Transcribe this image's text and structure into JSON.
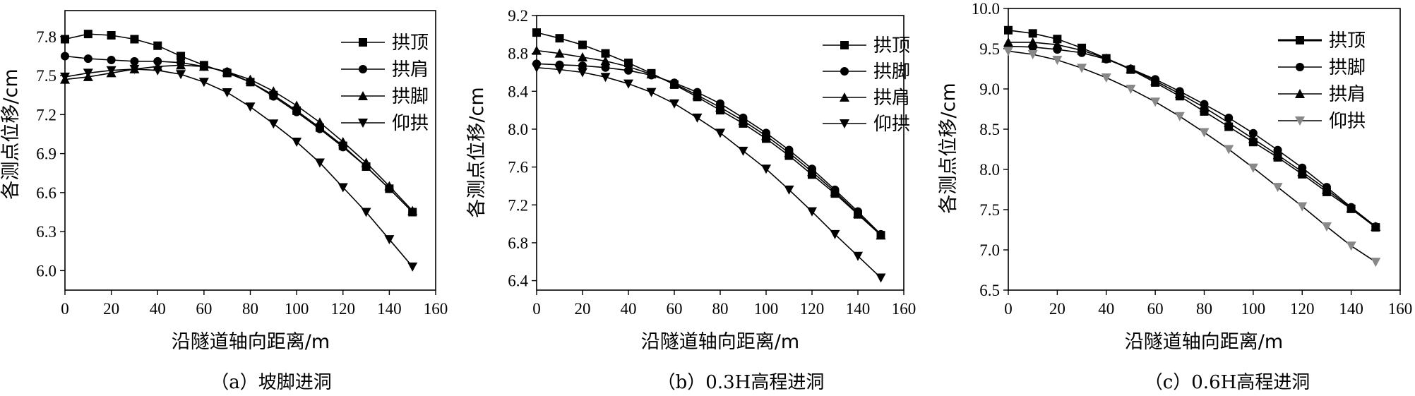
{
  "chart_data": [
    {
      "type": "line",
      "caption": "（a）坡脚进洞",
      "xlabel": "沿隧道轴向距离/m",
      "ylabel": "各测点位移/cm",
      "xlim": [
        0,
        160
      ],
      "ylim": [
        5.85,
        8.0
      ],
      "xticks": [
        "0",
        "20",
        "40",
        "60",
        "80",
        "100",
        "120",
        "140",
        "160"
      ],
      "yticks": [
        "6.0",
        "6.3",
        "6.6",
        "6.9",
        "7.2",
        "7.5",
        "7.8"
      ],
      "legend_position": "top-right",
      "x": [
        0,
        10,
        20,
        30,
        40,
        50,
        60,
        70,
        80,
        90,
        100,
        110,
        120,
        130,
        140,
        150
      ],
      "series": [
        {
          "name": "拱顶",
          "marker": "square",
          "color": "#000000",
          "values": [
            7.78,
            7.82,
            7.81,
            7.78,
            7.73,
            7.65,
            7.58,
            7.52,
            7.45,
            7.35,
            7.23,
            7.1,
            6.96,
            6.8,
            6.63,
            6.45
          ]
        },
        {
          "name": "拱肩",
          "marker": "circle",
          "color": "#000000",
          "values": [
            7.65,
            7.63,
            7.62,
            7.61,
            7.61,
            7.6,
            7.57,
            7.53,
            7.45,
            7.34,
            7.22,
            7.09,
            6.95,
            6.8,
            6.63,
            6.45
          ]
        },
        {
          "name": "拱脚",
          "marker": "triangle-up",
          "color": "#000000",
          "values": [
            7.47,
            7.49,
            7.52,
            7.55,
            7.57,
            7.58,
            7.57,
            7.53,
            7.47,
            7.38,
            7.27,
            7.14,
            6.99,
            6.83,
            6.65,
            6.46
          ]
        },
        {
          "name": "仰拱",
          "marker": "triangle-down",
          "color": "#000000",
          "values": [
            7.49,
            7.52,
            7.54,
            7.55,
            7.54,
            7.51,
            7.45,
            7.37,
            7.26,
            7.13,
            6.99,
            6.83,
            6.64,
            6.45,
            6.24,
            6.03
          ]
        }
      ]
    },
    {
      "type": "line",
      "caption": "（b）0.3H高程进洞",
      "xlabel": "沿隧道轴向距离/m",
      "ylabel": "各测点位移/cm",
      "xlim": [
        0,
        160
      ],
      "ylim": [
        6.3,
        9.2
      ],
      "xticks": [
        "0",
        "20",
        "40",
        "60",
        "80",
        "100",
        "120",
        "140",
        "160"
      ],
      "yticks": [
        "6.4",
        "6.8",
        "7.2",
        "7.6",
        "8.0",
        "8.4",
        "8.8",
        "9.2"
      ],
      "legend_position": "top-right",
      "x": [
        0,
        10,
        20,
        30,
        40,
        50,
        60,
        70,
        80,
        90,
        100,
        110,
        120,
        130,
        140,
        150
      ],
      "series": [
        {
          "name": "拱顶",
          "marker": "square",
          "color": "#000000",
          "values": [
            9.02,
            8.96,
            8.89,
            8.8,
            8.7,
            8.59,
            8.47,
            8.34,
            8.2,
            8.06,
            7.9,
            7.72,
            7.52,
            7.32,
            7.1,
            6.88
          ]
        },
        {
          "name": "拱脚",
          "marker": "circle",
          "color": "#000000",
          "values": [
            8.69,
            8.68,
            8.67,
            8.65,
            8.62,
            8.57,
            8.49,
            8.39,
            8.27,
            8.12,
            7.96,
            7.78,
            7.58,
            7.36,
            7.13,
            6.89
          ]
        },
        {
          "name": "拱肩",
          "marker": "triangle-up",
          "color": "#000000",
          "values": [
            8.83,
            8.8,
            8.76,
            8.72,
            8.66,
            8.58,
            8.48,
            8.36,
            8.23,
            8.09,
            7.93,
            7.75,
            7.55,
            7.34,
            7.11,
            6.88
          ]
        },
        {
          "name": "仰拱",
          "marker": "triangle-down",
          "color": "#000000",
          "values": [
            8.65,
            8.63,
            8.6,
            8.55,
            8.48,
            8.39,
            8.27,
            8.12,
            7.96,
            7.77,
            7.58,
            7.36,
            7.13,
            6.89,
            6.66,
            6.43
          ]
        }
      ]
    },
    {
      "type": "line",
      "caption": "（c）0.6H高程进洞",
      "xlabel": "沿隧道轴向距离/m",
      "ylabel": "各测点位移/cm",
      "xlim": [
        0,
        160
      ],
      "ylim": [
        6.5,
        10.0
      ],
      "xticks": [
        "0",
        "20",
        "40",
        "60",
        "80",
        "100",
        "120",
        "140",
        "160"
      ],
      "yticks": [
        "6.5",
        "7.0",
        "7.5",
        "8.0",
        "8.5",
        "9.0",
        "9.5",
        "10.0"
      ],
      "legend_position": "top-right",
      "x": [
        0,
        10,
        20,
        30,
        40,
        50,
        60,
        70,
        80,
        90,
        100,
        110,
        120,
        130,
        140,
        150
      ],
      "series": [
        {
          "name": "拱顶",
          "marker": "square",
          "color": "#000000",
          "values": [
            9.73,
            9.69,
            9.62,
            9.51,
            9.38,
            9.24,
            9.08,
            8.91,
            8.72,
            8.53,
            8.34,
            8.15,
            7.94,
            7.72,
            7.51,
            7.28
          ]
        },
        {
          "name": "拱脚",
          "marker": "circle",
          "color": "#000000",
          "values": [
            9.53,
            9.52,
            9.49,
            9.45,
            9.37,
            9.25,
            9.12,
            8.97,
            8.81,
            8.64,
            8.45,
            8.24,
            8.02,
            7.78,
            7.53,
            7.29
          ]
        },
        {
          "name": "拱肩",
          "marker": "triangle-up",
          "color": "#000000",
          "values": [
            9.58,
            9.58,
            9.55,
            9.48,
            9.38,
            9.25,
            9.1,
            8.94,
            8.77,
            8.58,
            8.38,
            8.18,
            7.97,
            7.75,
            7.52,
            7.29
          ]
        },
        {
          "name": "仰拱",
          "marker": "triangle-down",
          "color": "#888888",
          "values": [
            9.47,
            9.43,
            9.36,
            9.26,
            9.14,
            9.0,
            8.84,
            8.66,
            8.46,
            8.25,
            8.02,
            7.78,
            7.54,
            7.29,
            7.05,
            6.85
          ]
        }
      ]
    }
  ]
}
